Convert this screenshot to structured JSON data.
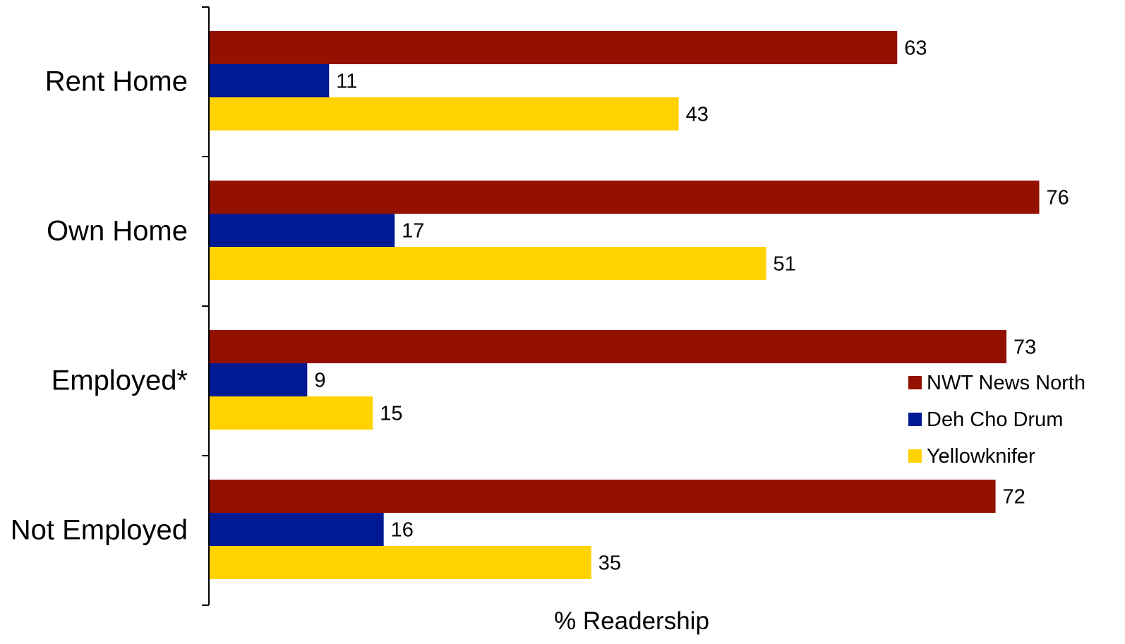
{
  "chart_data": {
    "type": "bar",
    "orientation": "horizontal",
    "title": "",
    "xlabel": "% Readership",
    "ylabel": "",
    "categories": [
      "Rent Home",
      "Own Home",
      "Employed*",
      "Not Employed"
    ],
    "series": [
      {
        "name": "NWT News North",
        "color": "#941100",
        "values": [
          63,
          76,
          73,
          72
        ]
      },
      {
        "name": "Deh Cho Drum",
        "color": "#001A94",
        "values": [
          11,
          17,
          9,
          16
        ]
      },
      {
        "name": "Yellowknifer",
        "color": "#FFD200",
        "values": [
          43,
          51,
          15,
          35
        ]
      }
    ],
    "xlim": [
      0,
      100
    ],
    "grid": false,
    "legend_position": "right"
  }
}
